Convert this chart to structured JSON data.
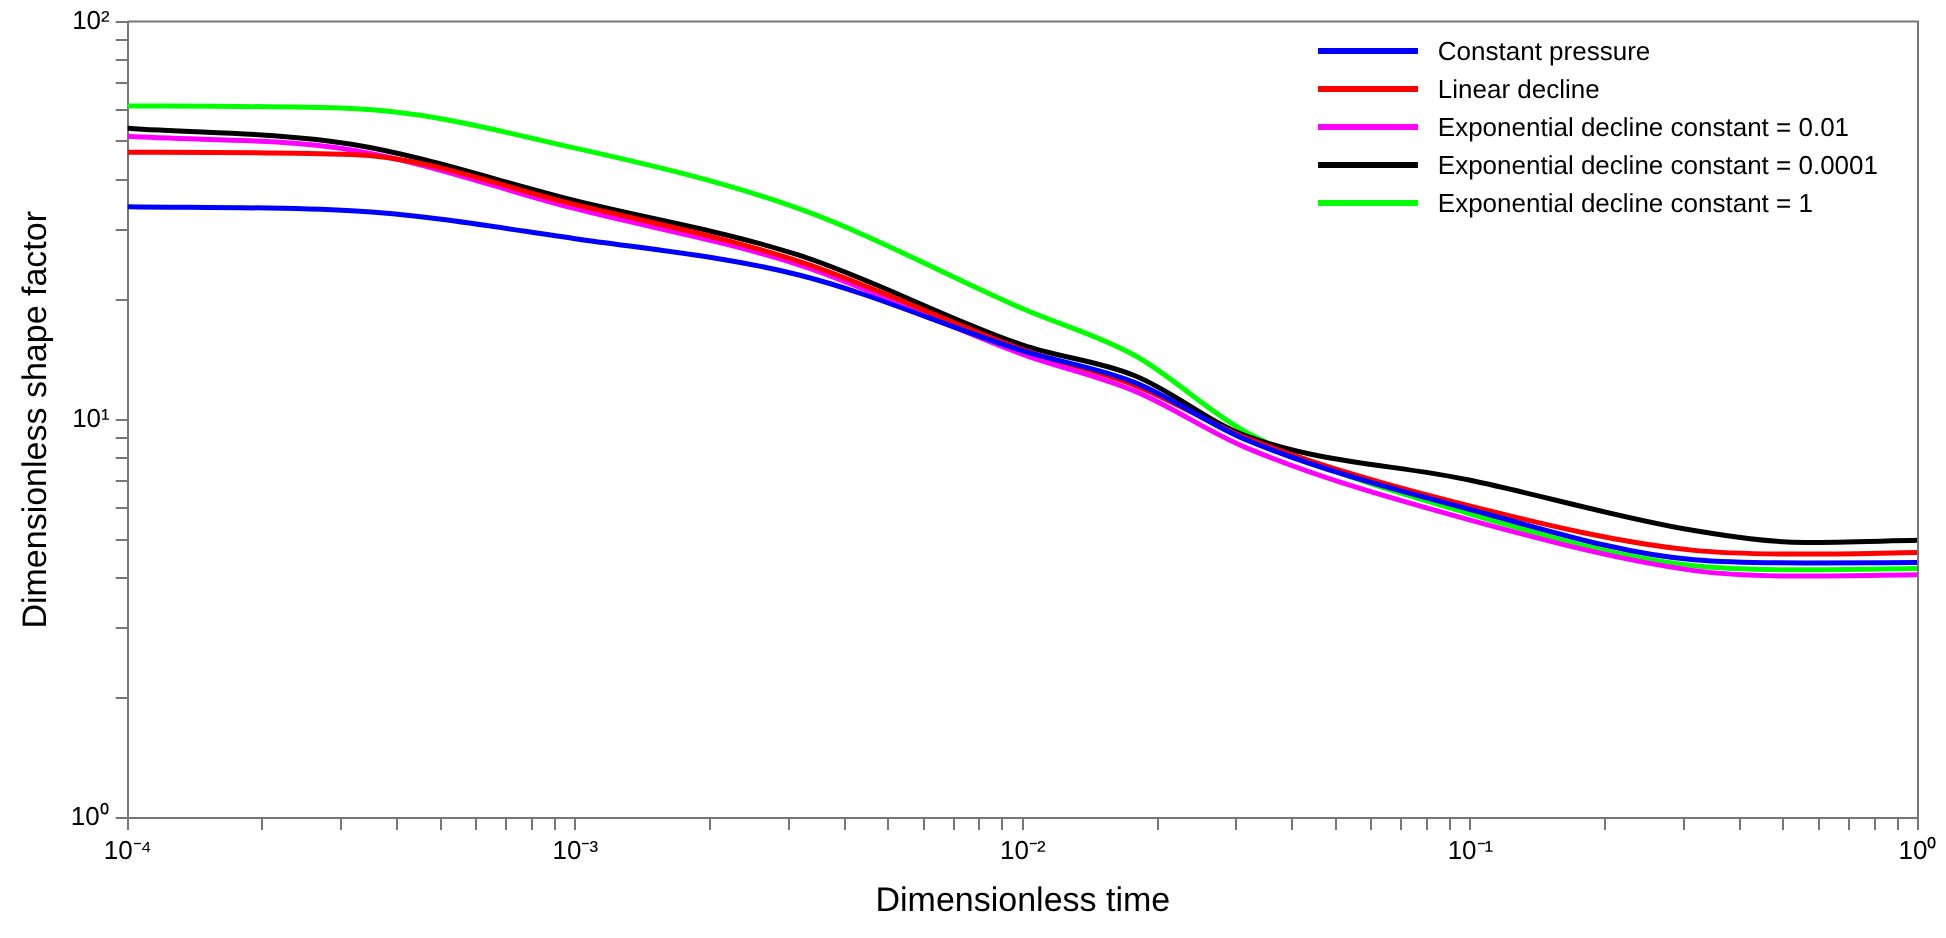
{
  "chart_data": {
    "type": "line",
    "xlabel": "Dimensionless time",
    "ylabel": "Dimensionless shape factor",
    "log": "xy",
    "grid": false,
    "legend": "top right",
    "marker": "none",
    "line_style": "solid",
    "x": [
      0.0001,
      0.000316,
      0.001,
      0.00316,
      0.01,
      0.0178,
      0.0316,
      0.1,
      0.316,
      0.562,
      1
    ],
    "xlim": [
      0.0001,
      1
    ],
    "ylim": [
      1,
      100
    ],
    "xticks": [
      {
        "value": 0.0001,
        "label": "10⁻⁴"
      },
      {
        "value": 0.0002,
        "label": null
      },
      {
        "value": 0.0003,
        "label": null
      },
      {
        "value": 0.0004,
        "label": null
      },
      {
        "value": 0.0005,
        "label": null
      },
      {
        "value": 0.0006,
        "label": null
      },
      {
        "value": 0.0007,
        "label": null
      },
      {
        "value": 0.0008,
        "label": null
      },
      {
        "value": 0.0009,
        "label": null
      },
      {
        "value": 0.001,
        "label": "10⁻³"
      },
      {
        "value": 0.002,
        "label": null
      },
      {
        "value": 0.003,
        "label": null
      },
      {
        "value": 0.004,
        "label": null
      },
      {
        "value": 0.005,
        "label": null
      },
      {
        "value": 0.006,
        "label": null
      },
      {
        "value": 0.007,
        "label": null
      },
      {
        "value": 0.008,
        "label": null
      },
      {
        "value": 0.009,
        "label": null
      },
      {
        "value": 0.01,
        "label": "10⁻²"
      },
      {
        "value": 0.02,
        "label": null
      },
      {
        "value": 0.03,
        "label": null
      },
      {
        "value": 0.04,
        "label": null
      },
      {
        "value": 0.05,
        "label": null
      },
      {
        "value": 0.06,
        "label": null
      },
      {
        "value": 0.07,
        "label": null
      },
      {
        "value": 0.08,
        "label": null
      },
      {
        "value": 0.09,
        "label": null
      },
      {
        "value": 0.1,
        "label": "10⁻¹"
      },
      {
        "value": 0.2,
        "label": null
      },
      {
        "value": 0.3,
        "label": null
      },
      {
        "value": 0.4,
        "label": null
      },
      {
        "value": 0.5,
        "label": null
      },
      {
        "value": 0.6,
        "label": null
      },
      {
        "value": 0.7,
        "label": null
      },
      {
        "value": 0.8,
        "label": null
      },
      {
        "value": 0.9,
        "label": null
      },
      {
        "value": 1,
        "label": "10⁰"
      }
    ],
    "yticks": [
      {
        "value": 1,
        "label": "10⁰"
      },
      {
        "value": 2,
        "label": null
      },
      {
        "value": 3,
        "label": null
      },
      {
        "value": 4,
        "label": null
      },
      {
        "value": 5,
        "label": null
      },
      {
        "value": 6,
        "label": null
      },
      {
        "value": 7,
        "label": null
      },
      {
        "value": 8,
        "label": null
      },
      {
        "value": 9,
        "label": null
      },
      {
        "value": 10,
        "label": "10¹"
      },
      {
        "value": 20,
        "label": null
      },
      {
        "value": 30,
        "label": null
      },
      {
        "value": 40,
        "label": null
      },
      {
        "value": 50,
        "label": null
      },
      {
        "value": 60,
        "label": null
      },
      {
        "value": 70,
        "label": null
      },
      {
        "value": 80,
        "label": null
      },
      {
        "value": 90,
        "label": null
      },
      {
        "value": 100,
        "label": "10²"
      }
    ],
    "series": [
      {
        "name": "Constant pressure",
        "color": "#0000ff",
        "values": [
          34.3,
          33.5,
          28.5,
          23.1,
          14.9,
          12.4,
          8.9,
          5.95,
          4.45,
          4.37,
          4.38
        ]
      },
      {
        "name": "Linear decline",
        "color": "#ff0000",
        "values": [
          47,
          46.4,
          34.7,
          25.0,
          15.0,
          12.2,
          9.0,
          6.07,
          4.7,
          4.6,
          4.64
        ]
      },
      {
        "name": "Exponential decline constant = 0.01",
        "color": "#ff00ff",
        "values": [
          51.5,
          47.6,
          33.9,
          24.5,
          14.6,
          11.8,
          8.5,
          5.6,
          4.18,
          4.05,
          4.08
        ]
      },
      {
        "name": "Exponential decline constant = 0.0001",
        "color": "#000000",
        "values": [
          54,
          49.2,
          35.5,
          25.9,
          15.4,
          12.9,
          9.1,
          7.05,
          5.27,
          4.92,
          4.98
        ]
      },
      {
        "name": "Exponential decline constant = 1",
        "color": "#00ff00",
        "values": [
          61.4,
          60.5,
          48.1,
          33.9,
          19.0,
          14.5,
          9.3,
          5.8,
          4.3,
          4.2,
          4.23
        ]
      }
    ]
  }
}
